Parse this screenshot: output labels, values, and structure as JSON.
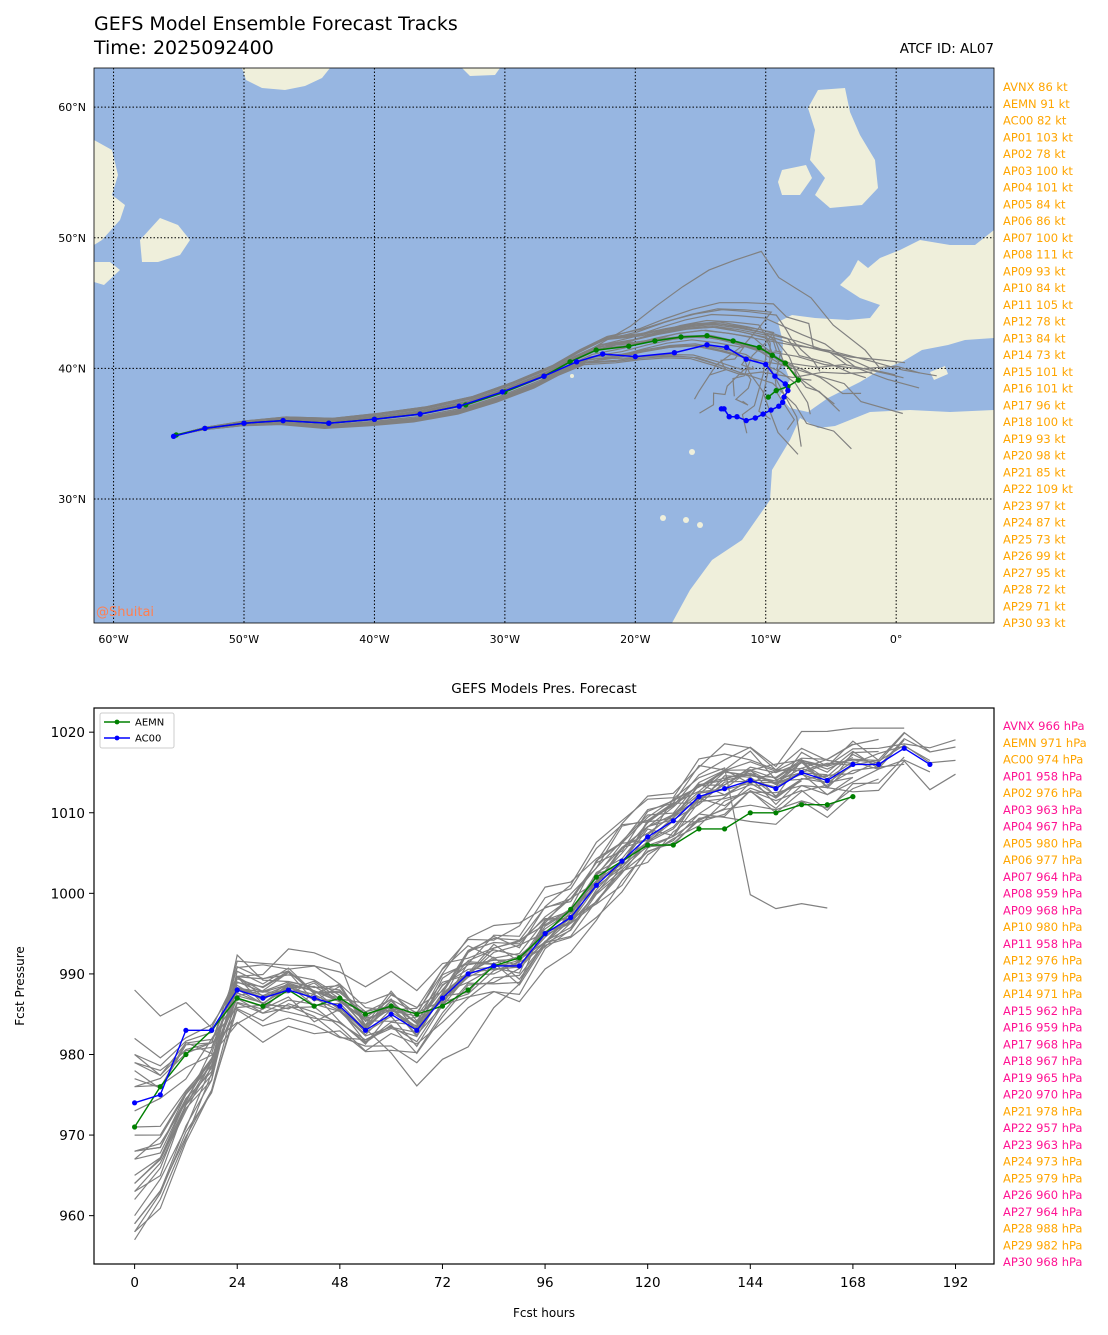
{
  "header": {
    "title": "GEFS Model Ensemble Forecast Tracks",
    "time_label": "Time: 2025092400",
    "atcf_label": "ATCF ID: AL07",
    "watermark": "@Shuitai"
  },
  "colors": {
    "ocean": "#97b6e1",
    "land": "#efefdb",
    "member": "#808080",
    "aemn": "#008000",
    "ac00": "#0000ff",
    "list_orange": "#ffa500",
    "list_pink": "#ff1493",
    "watermark": "#ff7f50"
  },
  "chart_data": [
    {
      "type": "map-tracks",
      "lon_range": [
        -61.5,
        7.5
      ],
      "lat_range": [
        20.5,
        63
      ],
      "lon_ticks": [
        "60°W",
        "50°W",
        "40°W",
        "30°W",
        "20°W",
        "10°W",
        "0°"
      ],
      "lat_ticks": [
        "60°N",
        "50°N",
        "40°N",
        "30°N"
      ],
      "grid": "dotted",
      "series": [
        {
          "name": "AEMN",
          "color": "#008000",
          "points": [
            [
              -55.2,
              34.9
            ],
            [
              -53,
              35.4
            ],
            [
              -50,
              35.8
            ],
            [
              -47,
              36.0
            ],
            [
              -43.5,
              35.8
            ],
            [
              -40,
              36.1
            ],
            [
              -36.5,
              36.5
            ],
            [
              -33,
              37.2
            ],
            [
              -30,
              38.2
            ],
            [
              -27,
              39.4
            ],
            [
              -25,
              40.5
            ],
            [
              -23,
              41.4
            ],
            [
              -20.5,
              41.7
            ],
            [
              -18.5,
              42.1
            ],
            [
              -16.5,
              42.4
            ],
            [
              -14.5,
              42.5
            ],
            [
              -12.5,
              42.1
            ],
            [
              -10.5,
              41.6
            ],
            [
              -9.5,
              41.0
            ],
            [
              -8.5,
              40.4
            ],
            [
              -7.5,
              39.1
            ],
            [
              -8.3,
              38.6
            ],
            [
              -9.2,
              38.3
            ],
            [
              -9.8,
              37.8
            ]
          ]
        },
        {
          "name": "AC00",
          "color": "#0000ff",
          "points": [
            [
              -55.4,
              34.8
            ],
            [
              -53,
              35.4
            ],
            [
              -50,
              35.8
            ],
            [
              -47,
              36.0
            ],
            [
              -43.5,
              35.8
            ],
            [
              -40,
              36.1
            ],
            [
              -36.5,
              36.5
            ],
            [
              -33.5,
              37.1
            ],
            [
              -30.2,
              38.2
            ],
            [
              -27,
              39.4
            ],
            [
              -24.5,
              40.5
            ],
            [
              -22.5,
              41.1
            ],
            [
              -20,
              40.9
            ],
            [
              -17,
              41.2
            ],
            [
              -14.5,
              41.8
            ],
            [
              -13,
              41.6
            ],
            [
              -11.5,
              40.7
            ],
            [
              -10,
              40.3
            ],
            [
              -9.3,
              39.4
            ],
            [
              -8.5,
              38.8
            ],
            [
              -8.3,
              38.3
            ],
            [
              -8.6,
              37.8
            ],
            [
              -8.7,
              37.4
            ],
            [
              -9.0,
              37.1
            ],
            [
              -9.6,
              36.8
            ],
            [
              -10.2,
              36.5
            ],
            [
              -10.8,
              36.2
            ],
            [
              -11.5,
              36.0
            ],
            [
              -12.2,
              36.3
            ],
            [
              -12.8,
              36.3
            ],
            [
              -13.2,
              36.9
            ],
            [
              -13.4,
              36.9
            ]
          ]
        }
      ],
      "member_count": 30
    },
    {
      "type": "line",
      "title": "GEFS Models Pres. Forecast",
      "xlabel": "Fcst hours",
      "ylabel": "Fcst Pressure",
      "xlim": [
        -9.5,
        201
      ],
      "ylim": [
        954,
        1023
      ],
      "xticks": [
        0,
        24,
        48,
        72,
        96,
        120,
        144,
        168,
        192
      ],
      "yticks": [
        960,
        970,
        980,
        990,
        1000,
        1010,
        1020
      ],
      "legend": "top-left",
      "series": [
        {
          "name": "AEMN",
          "color": "#008000",
          "x": [
            0,
            6,
            12,
            18,
            24,
            30,
            36,
            42,
            48,
            54,
            60,
            66,
            72,
            78,
            84,
            90,
            96,
            102,
            108,
            114,
            120,
            126,
            132,
            138,
            144,
            150,
            156,
            162,
            168
          ],
          "values": [
            971,
            976,
            980,
            983,
            987,
            986,
            988,
            986,
            987,
            985,
            986,
            985,
            986,
            988,
            991,
            992,
            995,
            998,
            1002,
            1004,
            1006,
            1006,
            1008,
            1008,
            1010,
            1010,
            1011,
            1011,
            1012
          ]
        },
        {
          "name": "AC00",
          "color": "#0000ff",
          "x": [
            0,
            6,
            12,
            18,
            24,
            30,
            36,
            42,
            48,
            54,
            60,
            66,
            72,
            78,
            84,
            90,
            96,
            102,
            108,
            114,
            120,
            126,
            132,
            138,
            144,
            150,
            156,
            162,
            168,
            174,
            180,
            186
          ],
          "values": [
            974,
            975,
            983,
            983,
            988,
            987,
            988,
            987,
            986,
            983,
            985,
            983,
            987,
            990,
            991,
            991,
            995,
            997,
            1001,
            1004,
            1007,
            1009,
            1012,
            1013,
            1014,
            1013,
            1015,
            1014,
            1016,
            1016,
            1018,
            1016
          ]
        }
      ]
    }
  ],
  "map_legend": {
    "items": [
      {
        "label": "AVNX 86 kt"
      },
      {
        "label": "AEMN 91 kt"
      },
      {
        "label": "AC00 82 kt"
      },
      {
        "label": "AP01 103 kt"
      },
      {
        "label": "AP02 78 kt"
      },
      {
        "label": "AP03 100 kt"
      },
      {
        "label": "AP04 101 kt"
      },
      {
        "label": "AP05 84 kt"
      },
      {
        "label": "AP06 86 kt"
      },
      {
        "label": "AP07 100 kt"
      },
      {
        "label": "AP08 111 kt"
      },
      {
        "label": "AP09 93 kt"
      },
      {
        "label": "AP10 84 kt"
      },
      {
        "label": "AP11 105 kt"
      },
      {
        "label": "AP12 78 kt"
      },
      {
        "label": "AP13 84 kt"
      },
      {
        "label": "AP14 73 kt"
      },
      {
        "label": "AP15 101 kt"
      },
      {
        "label": "AP16 101 kt"
      },
      {
        "label": "AP17 96 kt"
      },
      {
        "label": "AP18 100 kt"
      },
      {
        "label": "AP19 93 kt"
      },
      {
        "label": "AP20 98 kt"
      },
      {
        "label": "AP21 85 kt"
      },
      {
        "label": "AP22 109 kt"
      },
      {
        "label": "AP23 97 kt"
      },
      {
        "label": "AP24 87 kt"
      },
      {
        "label": "AP25 73 kt"
      },
      {
        "label": "AP26 99 kt"
      },
      {
        "label": "AP27 95 kt"
      },
      {
        "label": "AP28 72 kt"
      },
      {
        "label": "AP29 71 kt"
      },
      {
        "label": "AP30 93 kt"
      }
    ]
  },
  "pres_legend": {
    "items": [
      {
        "label": "AVNX 966 hPa",
        "color": "#ff1493"
      },
      {
        "label": "AEMN 971 hPa",
        "color": "#ffa500"
      },
      {
        "label": "AC00 974 hPa",
        "color": "#ffa500"
      },
      {
        "label": "AP01 958 hPa",
        "color": "#ff1493"
      },
      {
        "label": "AP02 976 hPa",
        "color": "#ffa500"
      },
      {
        "label": "AP03 963 hPa",
        "color": "#ff1493"
      },
      {
        "label": "AP04 967 hPa",
        "color": "#ff1493"
      },
      {
        "label": "AP05 980 hPa",
        "color": "#ffa500"
      },
      {
        "label": "AP06 977 hPa",
        "color": "#ffa500"
      },
      {
        "label": "AP07 964 hPa",
        "color": "#ff1493"
      },
      {
        "label": "AP08 959 hPa",
        "color": "#ff1493"
      },
      {
        "label": "AP09 968 hPa",
        "color": "#ff1493"
      },
      {
        "label": "AP10 980 hPa",
        "color": "#ffa500"
      },
      {
        "label": "AP11 958 hPa",
        "color": "#ff1493"
      },
      {
        "label": "AP12 976 hPa",
        "color": "#ffa500"
      },
      {
        "label": "AP13 979 hPa",
        "color": "#ffa500"
      },
      {
        "label": "AP14 971 hPa",
        "color": "#ffa500"
      },
      {
        "label": "AP15 962 hPa",
        "color": "#ff1493"
      },
      {
        "label": "AP16 959 hPa",
        "color": "#ff1493"
      },
      {
        "label": "AP17 968 hPa",
        "color": "#ff1493"
      },
      {
        "label": "AP18 967 hPa",
        "color": "#ff1493"
      },
      {
        "label": "AP19 965 hPa",
        "color": "#ff1493"
      },
      {
        "label": "AP20 970 hPa",
        "color": "#ff1493"
      },
      {
        "label": "AP21 978 hPa",
        "color": "#ffa500"
      },
      {
        "label": "AP22 957 hPa",
        "color": "#ff1493"
      },
      {
        "label": "AP23 963 hPa",
        "color": "#ff1493"
      },
      {
        "label": "AP24 973 hPa",
        "color": "#ffa500"
      },
      {
        "label": "AP25 979 hPa",
        "color": "#ffa500"
      },
      {
        "label": "AP26 960 hPa",
        "color": "#ff1493"
      },
      {
        "label": "AP27 964 hPa",
        "color": "#ff1493"
      },
      {
        "label": "AP28 988 hPa",
        "color": "#ffa500"
      },
      {
        "label": "AP29 982 hPa",
        "color": "#ffa500"
      },
      {
        "label": "AP30 968 hPa",
        "color": "#ff1493"
      }
    ]
  }
}
